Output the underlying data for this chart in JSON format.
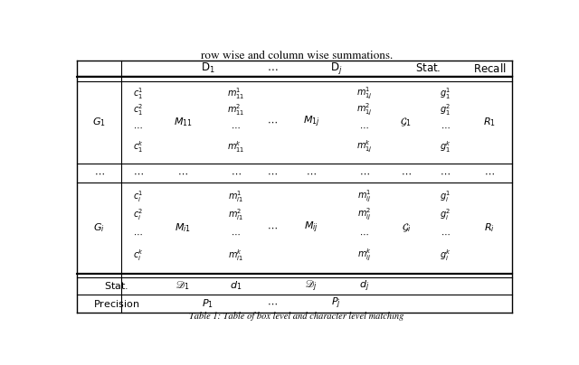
{
  "title_top": "row wise and column wise summations.",
  "caption": "Table 1: Table of box level and character level matching",
  "background": "#ffffff",
  "text_color": "#000000",
  "figsize": [
    6.4,
    4.04
  ],
  "dpi": 100,
  "col_props": [
    8,
    6,
    10,
    9,
    4,
    10,
    9,
    6,
    8,
    8
  ],
  "fs_title": 9.5,
  "fs_header": 8.5,
  "fs_cell": 8.0,
  "fs_small": 7.0,
  "fs_caption": 7.5
}
